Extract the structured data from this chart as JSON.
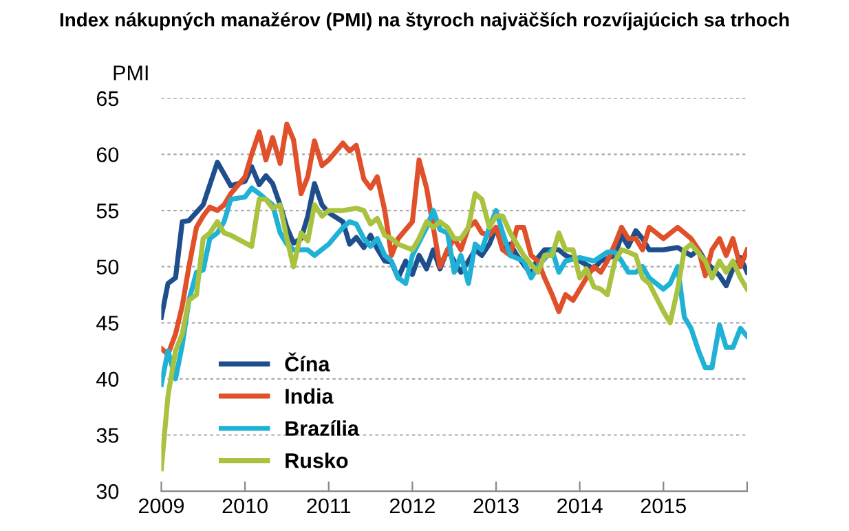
{
  "chart_data": {
    "type": "line",
    "title": "Index nákupných manažérov (PMI) na štyroch najväčších rozvíjajúcich sa trhoch",
    "ylabel": "PMI",
    "xlim": [
      2009,
      2016
    ],
    "xticks": [
      2009,
      2010,
      2011,
      2012,
      2013,
      2014,
      2015,
      {
        "value": 2016,
        "label": null
      }
    ],
    "ylim": [
      30,
      65
    ],
    "yticks": [
      30,
      35,
      40,
      45,
      50,
      55,
      60,
      65
    ],
    "grid": "y",
    "legend": "bottom left",
    "line_style": "solid",
    "marker": "none",
    "series": [
      {
        "name": "Čína",
        "color": "#1f4e8c",
        "x": [
          2009.0,
          2009.08,
          2009.17,
          2009.25,
          2009.33,
          2009.5,
          2009.67,
          2009.83,
          2010.0,
          2010.08,
          2010.17,
          2010.25,
          2010.33,
          2010.42,
          2010.5,
          2010.58,
          2010.67,
          2010.75,
          2010.83,
          2010.92,
          2011.0,
          2011.17,
          2011.25,
          2011.33,
          2011.42,
          2011.5,
          2011.58,
          2011.67,
          2011.75,
          2011.83,
          2011.92,
          2012.0,
          2012.08,
          2012.17,
          2012.25,
          2012.33,
          2012.42,
          2012.5,
          2012.58,
          2012.67,
          2012.75,
          2012.83,
          2012.92,
          2013.0,
          2013.08,
          2013.17,
          2013.25,
          2013.42,
          2013.5,
          2013.58,
          2013.75,
          2013.83,
          2014.0,
          2014.17,
          2014.25,
          2014.42,
          2014.5,
          2014.58,
          2014.67,
          2014.75,
          2014.83,
          2015.0,
          2015.17,
          2015.33,
          2015.42,
          2015.5,
          2015.67,
          2015.75,
          2015.83,
          2015.92,
          2016.0
        ],
        "values": [
          45.5,
          48.5,
          49,
          54,
          54.1,
          55.5,
          59.3,
          57.2,
          57.6,
          58.9,
          57.3,
          58.1,
          57.4,
          55.5,
          53.5,
          52.1,
          52.5,
          54.5,
          57.4,
          55.5,
          54.8,
          54,
          52,
          52.6,
          51.7,
          52.8,
          51.6,
          50.5,
          50.4,
          49,
          50.5,
          49.3,
          51,
          49.8,
          51.5,
          49.8,
          51.5,
          50.5,
          49.5,
          50.5,
          51.5,
          51,
          52,
          53.5,
          51.5,
          52,
          51,
          49.3,
          50.8,
          51.5,
          51.5,
          51,
          50.5,
          49.8,
          50.5,
          51,
          52.8,
          51.8,
          53.2,
          52.5,
          51.5,
          51.5,
          51.7,
          51,
          51.5,
          50.5,
          49.2,
          48.3,
          49.8,
          50.8,
          49.5
        ]
      },
      {
        "name": "India",
        "color": "#e0502a",
        "x": [
          2009.0,
          2009.08,
          2009.17,
          2009.25,
          2009.33,
          2009.42,
          2009.5,
          2009.58,
          2009.67,
          2009.75,
          2009.83,
          2010.0,
          2010.08,
          2010.17,
          2010.25,
          2010.33,
          2010.42,
          2010.5,
          2010.58,
          2010.67,
          2010.75,
          2010.83,
          2010.92,
          2011.0,
          2011.17,
          2011.25,
          2011.33,
          2011.42,
          2011.5,
          2011.58,
          2011.67,
          2011.75,
          2011.83,
          2012.0,
          2012.08,
          2012.17,
          2012.25,
          2012.33,
          2012.42,
          2012.5,
          2012.58,
          2012.67,
          2012.75,
          2012.83,
          2012.92,
          2013.0,
          2013.08,
          2013.17,
          2013.25,
          2013.33,
          2013.42,
          2013.5,
          2013.58,
          2013.67,
          2013.75,
          2013.83,
          2013.92,
          2014.0,
          2014.08,
          2014.17,
          2014.25,
          2014.33,
          2014.42,
          2014.5,
          2014.58,
          2014.67,
          2014.75,
          2014.83,
          2015.0,
          2015.17,
          2015.33,
          2015.42,
          2015.5,
          2015.58,
          2015.67,
          2015.75,
          2015.83,
          2015.92,
          2016.0
        ],
        "values": [
          42.7,
          42.2,
          44,
          46.5,
          50,
          53.5,
          54.5,
          55.3,
          55,
          55.5,
          56.5,
          58,
          60,
          62,
          59.5,
          61.5,
          59.2,
          62.7,
          61.3,
          56.5,
          58,
          61.2,
          59,
          59.5,
          61,
          60.3,
          60.8,
          57.8,
          57,
          58,
          55,
          51,
          52.5,
          54,
          59.5,
          57,
          53.5,
          50,
          51.5,
          52.5,
          51.5,
          53.5,
          54,
          53,
          52.8,
          53.5,
          51.5,
          51,
          53.5,
          53.5,
          51,
          50.5,
          49,
          47.5,
          46,
          47.5,
          47,
          48,
          49,
          50,
          49.5,
          50.5,
          52,
          53.5,
          52.5,
          52.5,
          51.5,
          53.5,
          52.5,
          53.5,
          52.5,
          51.5,
          49.2,
          51.5,
          52.5,
          51,
          52.5,
          50,
          51.5
        ]
      },
      {
        "name": "Brazília",
        "color": "#1fb2d6",
        "x": [
          2009.0,
          2009.08,
          2009.17,
          2009.25,
          2009.33,
          2009.42,
          2009.5,
          2009.58,
          2009.67,
          2009.75,
          2009.83,
          2010.0,
          2010.08,
          2010.17,
          2010.25,
          2010.33,
          2010.42,
          2010.5,
          2010.58,
          2010.75,
          2010.83,
          2011.0,
          2011.17,
          2011.25,
          2011.33,
          2011.42,
          2011.5,
          2011.58,
          2011.67,
          2011.75,
          2011.83,
          2011.92,
          2012.0,
          2012.17,
          2012.25,
          2012.33,
          2012.42,
          2012.5,
          2012.58,
          2012.67,
          2012.75,
          2012.83,
          2012.92,
          2013.0,
          2013.08,
          2013.17,
          2013.33,
          2013.42,
          2013.5,
          2013.67,
          2013.75,
          2013.83,
          2014.0,
          2014.17,
          2014.33,
          2014.42,
          2014.5,
          2014.58,
          2014.67,
          2014.75,
          2014.83,
          2015.0,
          2015.08,
          2015.17,
          2015.25,
          2015.33,
          2015.42,
          2015.5,
          2015.58,
          2015.67,
          2015.75,
          2015.83,
          2015.92,
          2016.0
        ],
        "values": [
          39.5,
          42.5,
          40,
          43,
          47,
          49.5,
          49.7,
          52.5,
          53,
          54,
          56,
          56.2,
          57,
          56.5,
          56,
          55.5,
          53,
          52,
          51.5,
          51.5,
          51,
          52,
          53.5,
          54,
          53.8,
          52.5,
          51.8,
          52.5,
          51,
          50.5,
          49,
          48.5,
          51,
          53.5,
          55,
          53.3,
          53,
          49.5,
          51,
          48.5,
          52,
          51.5,
          53.5,
          55,
          53,
          51,
          50.5,
          49,
          50,
          51.5,
          49.5,
          50.5,
          50.8,
          50.5,
          51.3,
          51.3,
          50.5,
          49.5,
          49.5,
          50,
          49,
          48,
          48.5,
          50,
          45.5,
          44.5,
          42.5,
          41,
          41,
          44.8,
          42.8,
          42.8,
          44.5,
          43.8
        ]
      },
      {
        "name": "Rusko",
        "color": "#a9c23f",
        "x": [
          2009.0,
          2009.08,
          2009.17,
          2009.25,
          2009.33,
          2009.42,
          2009.5,
          2009.58,
          2009.67,
          2009.75,
          2009.83,
          2010.08,
          2010.17,
          2010.25,
          2010.33,
          2010.42,
          2010.5,
          2010.58,
          2010.67,
          2010.75,
          2010.83,
          2010.92,
          2011.0,
          2011.17,
          2011.33,
          2011.42,
          2011.5,
          2011.58,
          2011.67,
          2011.75,
          2011.83,
          2012.0,
          2012.08,
          2012.17,
          2012.25,
          2012.33,
          2012.42,
          2012.5,
          2012.58,
          2012.67,
          2012.75,
          2012.83,
          2012.92,
          2013.0,
          2013.08,
          2013.17,
          2013.33,
          2013.5,
          2013.58,
          2013.67,
          2013.75,
          2013.83,
          2013.92,
          2014.0,
          2014.08,
          2014.17,
          2014.25,
          2014.33,
          2014.42,
          2014.5,
          2014.58,
          2014.67,
          2014.75,
          2014.83,
          2015.0,
          2015.08,
          2015.17,
          2015.25,
          2015.33,
          2015.42,
          2015.5,
          2015.58,
          2015.67,
          2015.75,
          2015.83,
          2015.92,
          2016.0
        ],
        "values": [
          32,
          38.5,
          42.5,
          44,
          47,
          47.5,
          52.5,
          53,
          54,
          53,
          52.8,
          51.8,
          56,
          56,
          55.2,
          55.5,
          52.5,
          50,
          53,
          52.3,
          55.5,
          54.5,
          55,
          55,
          55.2,
          55,
          53.8,
          54.3,
          52.8,
          52.5,
          52,
          51.5,
          52.5,
          54,
          53.5,
          54,
          53.5,
          52.5,
          52.5,
          53.5,
          56.5,
          56,
          53.5,
          54.5,
          54.5,
          53,
          51,
          49.5,
          51,
          51,
          53,
          51.5,
          51.5,
          49,
          49.8,
          48.2,
          48,
          47.5,
          50.5,
          51.5,
          51.3,
          51,
          49,
          48.5,
          46,
          45,
          48,
          51.5,
          52,
          51.2,
          50.5,
          49,
          50.5,
          49.5,
          50.5,
          49,
          48
        ]
      }
    ]
  }
}
